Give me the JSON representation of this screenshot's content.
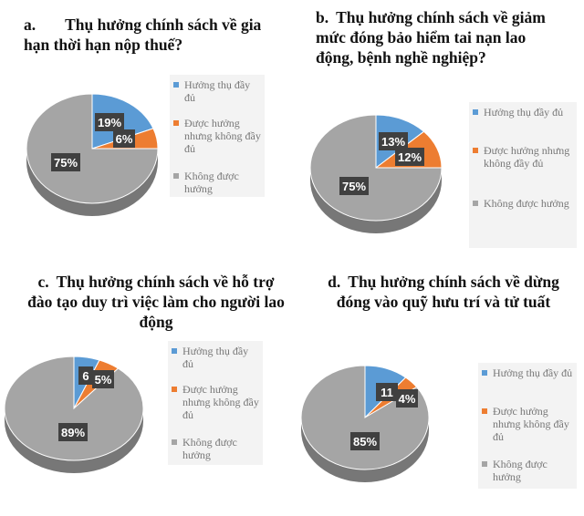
{
  "legend_labels": [
    "Hưởng thụ đầy đủ",
    "Được hưởng nhưng không đầy đủ",
    "Không được hưởng"
  ],
  "colors": [
    "#5b9bd5",
    "#ed7d31",
    "#a5a5a5"
  ],
  "chart_data": [
    {
      "type": "pie",
      "title_prefix": "a.",
      "title": "Thụ hưởng chính sách về gia hạn thời hạn nộp thuế?",
      "labels": [
        "Hưởng thụ đầy đủ",
        "Được hưởng nhưng không đầy đủ",
        "Không được hưởng"
      ],
      "values": [
        19,
        6,
        75
      ],
      "data_labels": [
        "19%",
        "6%",
        "75%"
      ],
      "legend": "right"
    },
    {
      "type": "pie",
      "title_prefix": "b.",
      "title": "Thụ hưởng chính sách về giảm mức đóng bảo hiểm tai nạn lao động, bệnh nghề nghiệp?",
      "labels": [
        "Hưởng thụ đầy đủ",
        "Được hưởng nhưng không đầy đủ",
        "Không được hưởng"
      ],
      "values": [
        13,
        12,
        75
      ],
      "data_labels": [
        "13%",
        "12%",
        "75%"
      ],
      "legend": "right"
    },
    {
      "type": "pie",
      "title_prefix": "c.",
      "title": "Thụ hưởng chính sách về hỗ trợ đào tạo duy trì việc làm cho người lao động",
      "labels": [
        "Hưởng thụ đầy đủ",
        "Được hưởng nhưng không đầy đủ",
        "Không được hưởng"
      ],
      "values": [
        6,
        5,
        89
      ],
      "data_labels": [
        "6",
        "5%",
        "89%"
      ],
      "legend": "right"
    },
    {
      "type": "pie",
      "title_prefix": "d.",
      "title": "Thụ hưởng chính sách về dừng đóng vào quỹ hưu trí và tử tuất",
      "labels": [
        "Hưởng thụ đầy đủ",
        "Được hưởng nhưng không đầy đủ",
        "Không được hưởng"
      ],
      "values": [
        11,
        4,
        85
      ],
      "data_labels": [
        "11",
        "4%",
        "85%"
      ],
      "legend": "right"
    }
  ]
}
